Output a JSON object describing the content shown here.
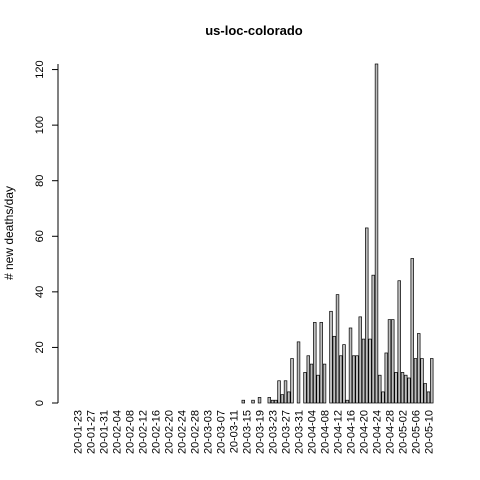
{
  "chart_data": {
    "type": "bar",
    "title": "us-loc-colorado",
    "xlabel": "",
    "ylabel": "# new deaths/day",
    "ylim": [
      0,
      122
    ],
    "y_ticks": [
      0,
      20,
      40,
      60,
      80,
      100,
      120
    ],
    "x_tick_labels": [
      "20-01-23",
      "20-01-27",
      "20-01-31",
      "20-02-04",
      "20-02-08",
      "20-02-12",
      "20-02-16",
      "20-02-20",
      "20-02-24",
      "20-02-28",
      "20-03-03",
      "20-03-07",
      "20-03-11",
      "20-03-15",
      "20-03-19",
      "20-03-23",
      "20-03-27",
      "20-03-31",
      "20-04-04",
      "20-04-08",
      "20-04-12",
      "20-04-16",
      "20-04-20",
      "20-04-24",
      "20-04-28",
      "20-05-02",
      "20-05-06",
      "20-05-10"
    ],
    "start_date": "2020-01-22",
    "bar_fill": "#bebebe",
    "bar_stroke": "#000000",
    "values": [
      0,
      0,
      0,
      0,
      0,
      0,
      0,
      0,
      0,
      0,
      0,
      0,
      0,
      0,
      0,
      0,
      0,
      0,
      0,
      0,
      0,
      0,
      0,
      0,
      0,
      0,
      0,
      0,
      0,
      0,
      0,
      0,
      0,
      0,
      0,
      0,
      0,
      0,
      0,
      0,
      0,
      0,
      0,
      0,
      0,
      0,
      0,
      0,
      0,
      0,
      0,
      0,
      1,
      0,
      0,
      1,
      0,
      2,
      0,
      0,
      2,
      1,
      1,
      8,
      3,
      8,
      4,
      16,
      0,
      22,
      0,
      11,
      17,
      14,
      29,
      10,
      29,
      14,
      0,
      33,
      24,
      39,
      17,
      21,
      1,
      27,
      17,
      17,
      31,
      23,
      63,
      23,
      46,
      122,
      10,
      4,
      18,
      30,
      30,
      11,
      44,
      11,
      10,
      9,
      52,
      16,
      25,
      16,
      7,
      4,
      16
    ]
  }
}
